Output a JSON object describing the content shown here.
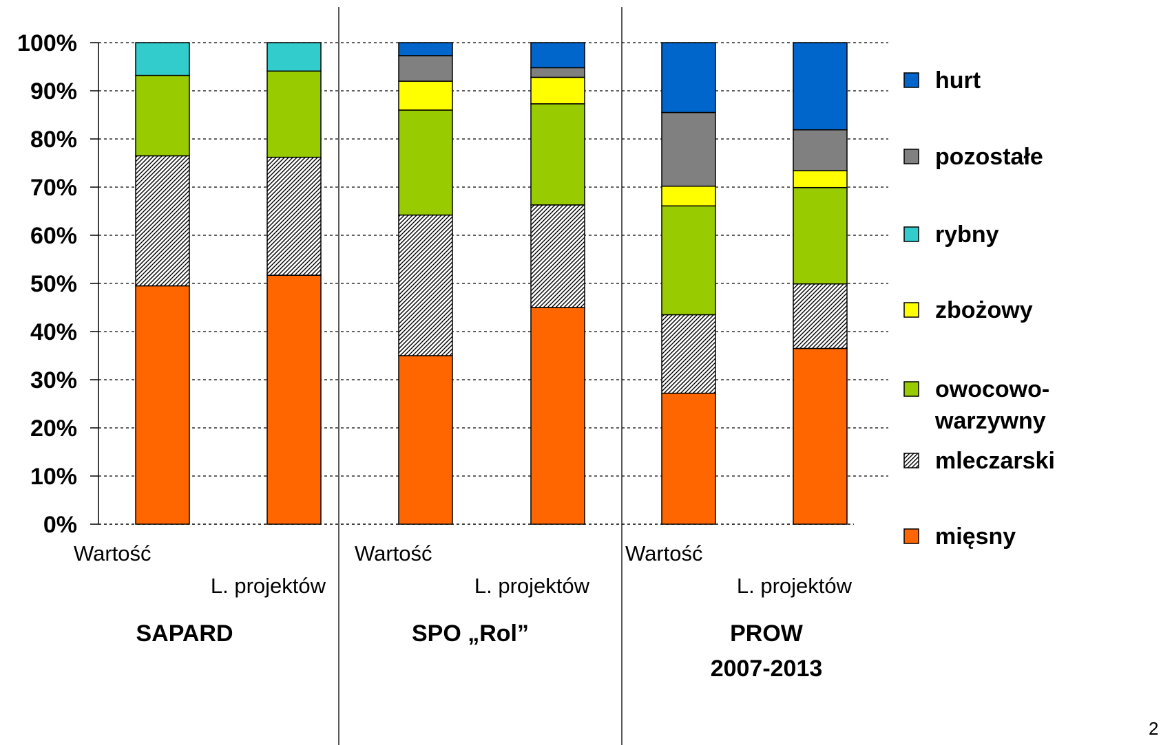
{
  "chart_data": {
    "type": "bar",
    "stacked": true,
    "percent_stacked": true,
    "y_ticks": [
      "0%",
      "10%",
      "20%",
      "30%",
      "40%",
      "50%",
      "60%",
      "70%",
      "80%",
      "90%",
      "100%"
    ],
    "ylim": [
      0,
      100
    ],
    "grid": "horizontal dotted",
    "legend_position": "right",
    "groups": [
      {
        "name": "SAPARD",
        "categories": [
          "Wartość",
          "L. projektów"
        ]
      },
      {
        "name": "SPO „Rol”",
        "categories": [
          "Wartość",
          "L. projektów"
        ]
      },
      {
        "name_lines": [
          "PROW",
          "2007-2013"
        ],
        "categories": [
          "Wartość",
          "L. projektów"
        ]
      }
    ],
    "series": [
      {
        "name": "mięsny",
        "color": "#ff6600",
        "values": [
          49.5,
          51.7,
          35.0,
          45.0,
          27.2,
          36.5
        ]
      },
      {
        "name": "mleczarski",
        "color": "#c0c0c0",
        "pattern": "diagonal-hatch",
        "values": [
          27.0,
          24.5,
          29.2,
          21.3,
          16.3,
          13.4
        ]
      },
      {
        "name": "owocowo-warzywny",
        "name_lines": [
          "owocowo-",
          "warzywny"
        ],
        "color": "#99cc00",
        "values": [
          16.7,
          17.9,
          21.8,
          21.0,
          22.6,
          20.0
        ]
      },
      {
        "name": "zbożowy",
        "color": "#ffff00",
        "values": [
          0,
          0,
          6.0,
          5.5,
          4.1,
          3.5
        ]
      },
      {
        "name": "rybny",
        "color": "#33cccc",
        "values": [
          6.8,
          5.9,
          0,
          0,
          0,
          0
        ]
      },
      {
        "name": "pozostałe",
        "color": "#808080",
        "values": [
          0,
          0,
          5.3,
          2.0,
          15.3,
          8.5
        ]
      },
      {
        "name": "hurt",
        "color": "#0066cc",
        "values": [
          0,
          0,
          2.7,
          5.2,
          14.5,
          18.1
        ]
      }
    ],
    "legend_order": [
      "hurt",
      "pozostałe",
      "rybny",
      "zbożowy",
      "owocowo-warzywny",
      "mleczarski",
      "mięsny"
    ]
  },
  "page_number": "2"
}
